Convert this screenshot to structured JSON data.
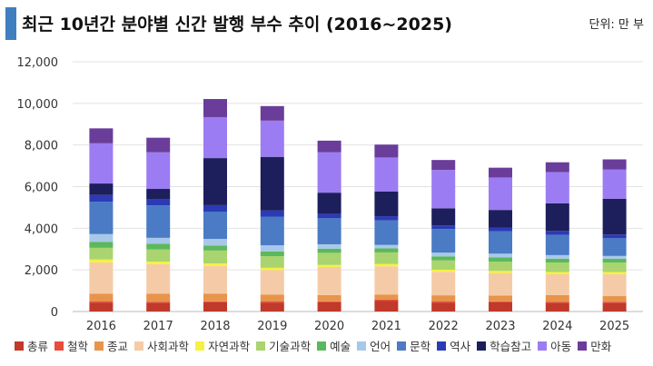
{
  "header": {
    "title": "최근 10년간 분야별 신간 발행 부수 추이 (2016~2025)",
    "unit": "단위: 만 부",
    "accent_color": "#3f7fbf"
  },
  "chart_data": {
    "type": "bar",
    "stacked": true,
    "categories": [
      "2016",
      "2017",
      "2018",
      "2019",
      "2020",
      "2021",
      "2022",
      "2023",
      "2024",
      "2025"
    ],
    "ylim": [
      0,
      12000
    ],
    "yticks": [
      "0",
      "2,000",
      "4,000",
      "6,000",
      "8,000",
      "10,000",
      "12,000"
    ],
    "ytick_values": [
      0,
      2000,
      4000,
      6000,
      8000,
      10000,
      12000
    ],
    "grid": true,
    "legend_position": "bottom",
    "series": [
      {
        "name": "총류",
        "color": "#c0392b",
        "values": [
          430,
          420,
          440,
          430,
          440,
          520,
          430,
          440,
          420,
          420
        ]
      },
      {
        "name": "철학",
        "color": "#e74c3c",
        "values": [
          50,
          50,
          50,
          50,
          50,
          50,
          50,
          50,
          50,
          50
        ]
      },
      {
        "name": "종교",
        "color": "#e8944a",
        "values": [
          380,
          390,
          370,
          330,
          300,
          250,
          300,
          280,
          320,
          270
        ]
      },
      {
        "name": "사회과학",
        "color": "#f5cba7",
        "values": [
          1500,
          1420,
          1330,
          1180,
          1350,
          1350,
          1130,
          1080,
          1000,
          1060
        ]
      },
      {
        "name": "자연과학",
        "color": "#f4f142",
        "values": [
          140,
          120,
          120,
          110,
          100,
          120,
          100,
          100,
          110,
          100
        ]
      },
      {
        "name": "기술과학",
        "color": "#a9d46f",
        "values": [
          560,
          580,
          620,
          560,
          580,
          550,
          450,
          450,
          450,
          450
        ]
      },
      {
        "name": "예술",
        "color": "#5cb85c",
        "values": [
          290,
          280,
          240,
          230,
          200,
          200,
          190,
          200,
          190,
          190
        ]
      },
      {
        "name": "언어",
        "color": "#a8c8ea",
        "values": [
          370,
          280,
          320,
          290,
          210,
          160,
          180,
          180,
          170,
          130
        ]
      },
      {
        "name": "문학",
        "color": "#4a7bc4",
        "values": [
          1550,
          1560,
          1310,
          1380,
          1250,
          1180,
          1130,
          1070,
          970,
          850
        ]
      },
      {
        "name": "역사",
        "color": "#2b3bb5",
        "values": [
          330,
          310,
          310,
          290,
          200,
          200,
          180,
          170,
          190,
          180
        ]
      },
      {
        "name": "학습참고",
        "color": "#1c1f5c",
        "values": [
          550,
          480,
          2260,
          2580,
          1030,
          1180,
          820,
          860,
          1330,
          1720
        ]
      },
      {
        "name": "아동",
        "color": "#9b7cf2",
        "values": [
          1930,
          1760,
          1970,
          1740,
          1940,
          1640,
          1840,
          1560,
          1500,
          1400
        ]
      },
      {
        "name": "만화",
        "color": "#6a3d9a",
        "values": [
          720,
          700,
          870,
          700,
          560,
          620,
          480,
          470,
          470,
          490
        ]
      }
    ]
  }
}
